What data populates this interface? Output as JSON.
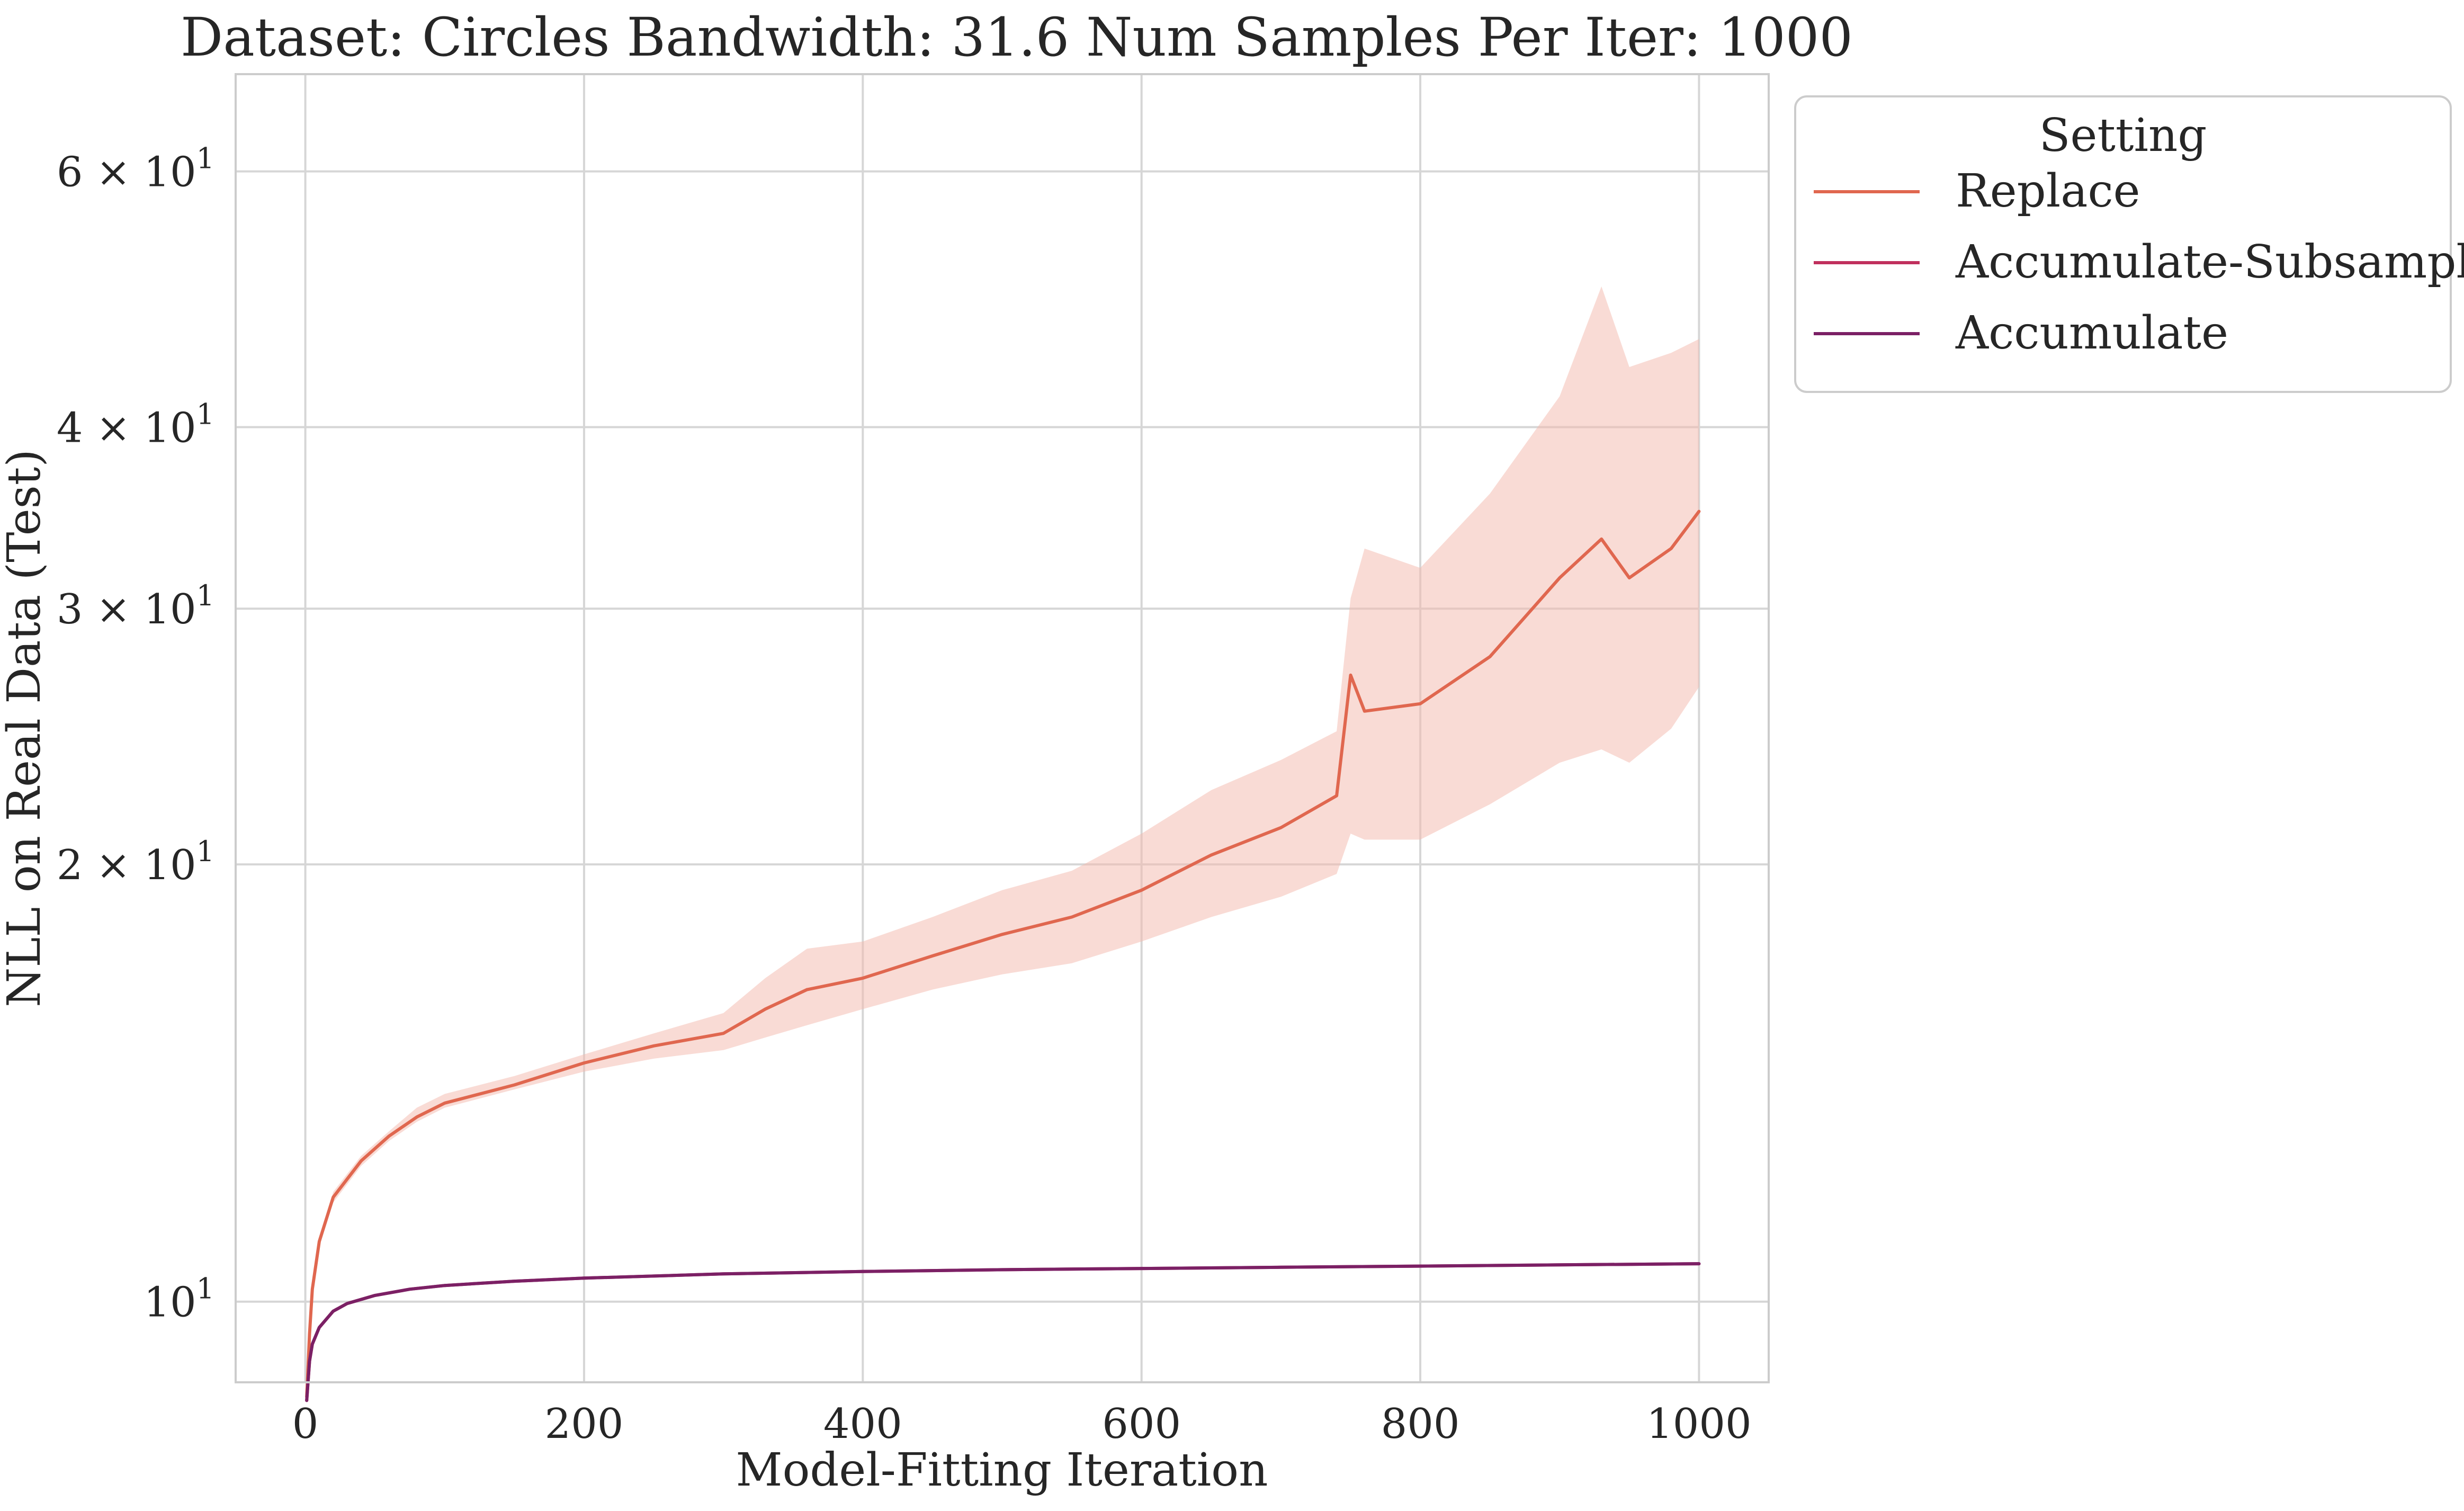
{
  "chart_data": {
    "type": "line",
    "title": "Dataset: Circles Bandwidth: 31.6 Num Samples Per Iter: 1000",
    "xlabel": "Model-Fitting Iteration",
    "ylabel": "NLL on Real Data (Test)",
    "xlim": [
      -50,
      1050
    ],
    "ylim": [
      8.8,
      70
    ],
    "yscale": "log",
    "grid": true,
    "x_ticks": [
      0,
      200,
      400,
      600,
      800,
      1000
    ],
    "x_tick_labels": [
      "0",
      "200",
      "400",
      "600",
      "800",
      "1000"
    ],
    "y_ticks": [
      10,
      20,
      30,
      40,
      60
    ],
    "y_tick_labels": [
      {
        "base": "10",
        "exp": "1",
        "mult": ""
      },
      {
        "base": "10",
        "exp": "1",
        "mult": "2 × "
      },
      {
        "base": "10",
        "exp": "1",
        "mult": "3 × "
      },
      {
        "base": "10",
        "exp": "1",
        "mult": "4 × "
      },
      {
        "base": "10",
        "exp": "1",
        "mult": "6 × "
      }
    ],
    "legend": {
      "title": "Setting",
      "placement": "outside-upper-right"
    },
    "series": [
      {
        "name": "Replace",
        "color": "#e0674f",
        "band_color": "#f3b7ab",
        "x": [
          1,
          3,
          5,
          10,
          20,
          40,
          60,
          80,
          100,
          150,
          200,
          250,
          300,
          330,
          360,
          400,
          450,
          500,
          550,
          600,
          650,
          700,
          740,
          750,
          760,
          800,
          850,
          900,
          930,
          950,
          980,
          1000
        ],
        "y": [
          8.6,
          9.5,
          10.2,
          11.0,
          11.8,
          12.5,
          13.0,
          13.4,
          13.7,
          14.1,
          14.6,
          15.0,
          15.3,
          15.9,
          16.4,
          16.7,
          17.3,
          17.9,
          18.4,
          19.2,
          20.3,
          21.2,
          22.3,
          27.0,
          25.5,
          25.8,
          27.8,
          31.5,
          33.5,
          31.5,
          33.0,
          35.0
        ],
        "lower": [
          8.6,
          9.5,
          10.2,
          11.0,
          11.7,
          12.4,
          12.9,
          13.3,
          13.6,
          14.0,
          14.4,
          14.7,
          14.9,
          15.2,
          15.5,
          15.9,
          16.4,
          16.8,
          17.1,
          17.7,
          18.4,
          19.0,
          19.7,
          21.0,
          20.8,
          20.8,
          22.0,
          23.5,
          24.0,
          23.5,
          24.8,
          26.5
        ],
        "upper": [
          8.6,
          9.5,
          10.2,
          11.0,
          11.9,
          12.6,
          13.1,
          13.6,
          13.9,
          14.3,
          14.8,
          15.3,
          15.8,
          16.7,
          17.5,
          17.7,
          18.4,
          19.2,
          19.8,
          21.0,
          22.5,
          23.6,
          24.7,
          30.5,
          33.0,
          32.0,
          36.0,
          42.0,
          50.0,
          44.0,
          45.0,
          46.0
        ]
      },
      {
        "name": "Accumulate-Subsample",
        "color": "#c0305d",
        "x": [
          1,
          3,
          5,
          10,
          20,
          30,
          50,
          75,
          100,
          150,
          200,
          300,
          400,
          500,
          600,
          700,
          800,
          900,
          1000
        ],
        "y": [
          8.55,
          9.1,
          9.35,
          9.6,
          9.85,
          9.97,
          10.1,
          10.2,
          10.26,
          10.33,
          10.38,
          10.45,
          10.49,
          10.52,
          10.54,
          10.56,
          10.58,
          10.6,
          10.62
        ]
      },
      {
        "name": "Accumulate",
        "color": "#7b2065",
        "x": [
          1,
          3,
          5,
          10,
          20,
          30,
          50,
          75,
          100,
          150,
          200,
          300,
          400,
          500,
          600,
          700,
          800,
          900,
          1000
        ],
        "y": [
          8.55,
          9.1,
          9.35,
          9.6,
          9.85,
          9.97,
          10.1,
          10.2,
          10.26,
          10.33,
          10.38,
          10.45,
          10.49,
          10.52,
          10.54,
          10.56,
          10.58,
          10.6,
          10.62
        ]
      }
    ]
  }
}
